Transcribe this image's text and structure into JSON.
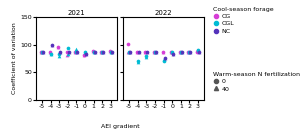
{
  "chart_data": {
    "type": "scatter",
    "xlabel": "AEI gradient",
    "ylabel": "Coefficient of variation",
    "categories": [
      "-5",
      "-4",
      "-3",
      "-2",
      "-1",
      "0",
      "1",
      "2",
      "3"
    ],
    "ylim": [
      0,
      150
    ],
    "yticks": [
      0,
      50,
      100,
      150
    ],
    "grid": false,
    "legend": "right",
    "series_legend_title": "Cool-season forage",
    "groups": {
      "title": "Warm-season N fertilization",
      "color": "#555555",
      "entries": [
        {
          "name": "0",
          "marker": "circle"
        },
        {
          "name": "40",
          "marker": "triangle"
        }
      ]
    },
    "panels": [
      {
        "title": "2021",
        "series": [
          {
            "name": "CG",
            "color": "#d63ed6",
            "group": "0",
            "values": [
              86,
              86,
              96,
              86,
              86,
              82,
              88,
              86,
              88
            ]
          },
          {
            "name": "CG",
            "color": "#d63ed6",
            "group": "40",
            "values": [
              86,
              86,
              96,
              82,
              86,
              82,
              88,
              86,
              88
            ]
          },
          {
            "name": "CGL",
            "color": "#00bcd4",
            "group": "0",
            "values": [
              86,
              83,
              83,
              95,
              86,
              86,
              86,
              86,
              86
            ]
          },
          {
            "name": "CGL",
            "color": "#00bcd4",
            "group": "40",
            "values": [
              86,
              83,
              80,
              83,
              93,
              86,
              86,
              86,
              86
            ]
          },
          {
            "name": "NC",
            "color": "#5533bb",
            "group": "0",
            "values": [
              86,
              100,
              86,
              86,
              86,
              84,
              86,
              86,
              86
            ]
          },
          {
            "name": "NC",
            "color": "#5533bb",
            "group": "40",
            "values": [
              86,
              100,
              86,
              86,
              86,
              84,
              86,
              86,
              86
            ]
          }
        ]
      },
      {
        "title": "2022",
        "series": [
          {
            "name": "CG",
            "color": "#d63ed6",
            "group": "0",
            "values": [
              102,
              86,
              86,
              86,
              86,
              86,
              86,
              86,
              86
            ]
          },
          {
            "name": "CG",
            "color": "#d63ed6",
            "group": "40",
            "values": [
              86,
              86,
              86,
              86,
              86,
              86,
              86,
              86,
              90
            ]
          },
          {
            "name": "CGL",
            "color": "#00bcd4",
            "group": "0",
            "values": [
              86,
              70,
              80,
              86,
              70,
              86,
              86,
              86,
              90
            ]
          },
          {
            "name": "CGL",
            "color": "#00bcd4",
            "group": "40",
            "values": [
              86,
              68,
              78,
              86,
              74,
              86,
              86,
              86,
              90
            ]
          },
          {
            "name": "NC",
            "color": "#5533bb",
            "group": "0",
            "values": [
              86,
              86,
              86,
              86,
              76,
              84,
              86,
              86,
              86
            ]
          },
          {
            "name": "NC",
            "color": "#5533bb",
            "group": "40",
            "values": [
              86,
              86,
              86,
              86,
              76,
              84,
              86,
              86,
              86
            ]
          }
        ]
      }
    ]
  }
}
